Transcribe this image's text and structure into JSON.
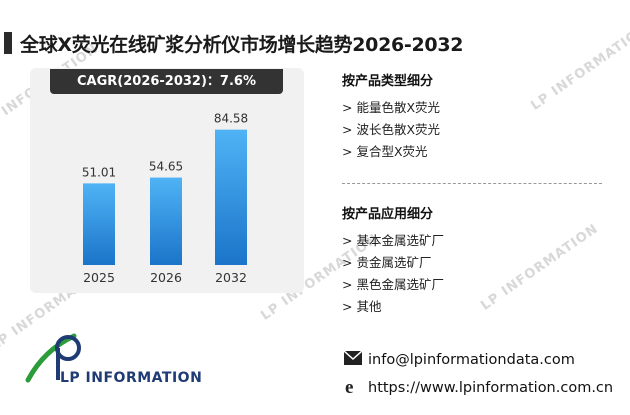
{
  "header": {
    "title": "全球X荧光在线矿浆分析仪市场增长趋势2026-2032"
  },
  "chart_data": {
    "type": "bar",
    "categories": [
      "2025",
      "2026",
      "2032"
    ],
    "values": [
      51.01,
      54.65,
      84.58
    ],
    "value_labels": [
      "51.01",
      "54.65",
      "84.58"
    ],
    "cagr_label": "CAGR(2026-2032)：7.6%",
    "bar_color_top": "#4fb3f5",
    "bar_color_bottom": "#1b74c9",
    "ylim": [
      0,
      100
    ],
    "grid": false,
    "legend": "none"
  },
  "segments": {
    "product_title": "按产品类型细分",
    "product_items": [
      "> 能量色散X荧光",
      "> 波长色散X荧光",
      "> 复合型X荧光"
    ],
    "application_title": "按产品应用细分",
    "application_items": [
      "> 基本金属选矿厂",
      "> 贵金属选矿厂",
      "> 黑色金属选矿厂",
      "> 其他"
    ]
  },
  "contact": {
    "email": "info@lpinformationdata.com",
    "website": "https://www.lpinformation.com.cn",
    "email_icon": "envelope-icon",
    "website_icon": "browser-e-icon"
  },
  "logo": {
    "text": "LP INFORMATION",
    "color": "#1f3b73"
  },
  "watermark": {
    "text": "LP INFORMATION"
  }
}
